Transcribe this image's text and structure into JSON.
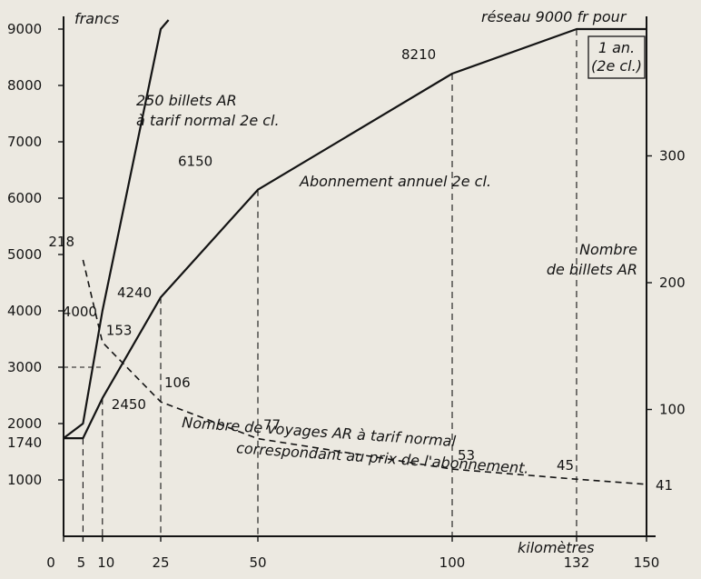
{
  "chart_data": {
    "type": "line",
    "unit_label": "francs",
    "xlabel": "kilomètres",
    "y2_title": [
      "Nombre",
      "de billets AR"
    ],
    "top_note": "réseau 9000 fr pour",
    "top_note_box": [
      "1 an.",
      "(2e cl.)"
    ],
    "x_ticks": [
      0,
      5,
      10,
      25,
      50,
      100,
      132,
      150
    ],
    "y_ticks": [
      1000,
      2000,
      3000,
      4000,
      5000,
      6000,
      7000,
      8000,
      9000
    ],
    "y2_ticks": [
      100,
      200,
      300
    ],
    "xlim": [
      0,
      150
    ],
    "ylim": [
      0,
      9000
    ],
    "y2lim": [
      0,
      400
    ],
    "series": [
      {
        "name": "Abonnement annuel 2e cl.",
        "x": [
          0,
          5,
          10,
          25,
          50,
          100,
          132,
          150
        ],
        "y": [
          1740,
          1740,
          2450,
          4240,
          6150,
          8210,
          9000,
          9000
        ],
        "labels": [
          "1740",
          "",
          "2450",
          "4240",
          "6150",
          "8210",
          "",
          ""
        ]
      },
      {
        "name": "250 billets AR à tarif normal 2e cl.",
        "x": [
          0,
          5,
          10,
          25,
          27
        ],
        "y": [
          1740,
          2000,
          4000,
          9000,
          9600
        ],
        "labels": [
          "",
          "",
          "4000",
          "",
          ""
        ]
      },
      {
        "name": "Nombre de voyages AR à tarif normal correspondant au prix de l'abonnement.",
        "axis": "right",
        "x": [
          5,
          10,
          25,
          50,
          100,
          132,
          150
        ],
        "y": [
          218,
          153,
          106,
          77,
          53,
          45,
          41
        ],
        "labels": [
          "218",
          "153",
          "106",
          "77",
          "53",
          "45",
          "41"
        ]
      }
    ],
    "series_captions": [
      [
        "250 billets AR",
        "à tarif normal 2e cl."
      ],
      [
        "Abonnement annuel 2e cl."
      ],
      [
        "Nombre de voyages AR à tarif normal",
        "correspondant au prix de l'abonnement."
      ]
    ]
  }
}
